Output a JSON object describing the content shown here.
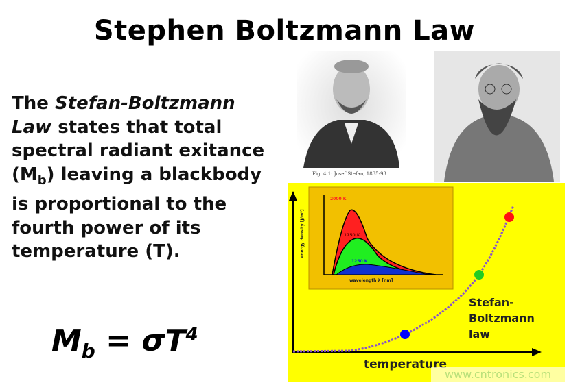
{
  "slide": {
    "title": "Stephen Boltzmann Law",
    "body": {
      "p1": "The ",
      "italic": "Stefan-Boltzmann Law",
      "p2": " states that total spectral radiant exitance (M",
      "sub": "b",
      "p3": ") leaving a blackbody is proportional to the fourth power of its temperature (T)."
    },
    "formula": {
      "lhs": "M",
      "lhs_sub": "b",
      "eq": " = σT",
      "exp": "4"
    },
    "portrait_caption": "Fig. 4.1: Josef Stefan, 1835-93",
    "figure": {
      "curve_label": "Stefan-Boltzmann law",
      "x_axis_label": "temperature",
      "background_color": "#ffff00",
      "point_colors": [
        "#0000ff",
        "#22cc22",
        "#ff1111"
      ],
      "inset": {
        "labels": [
          "2000 K",
          "1750 K",
          "1250 K"
        ],
        "y_label": "energy density [J/m³]",
        "x_label": "wavelength λ [nm]",
        "colors": [
          "#ff2020",
          "#20ee20",
          "#1030d0"
        ]
      }
    },
    "watermark": "www.cntronics.com"
  }
}
